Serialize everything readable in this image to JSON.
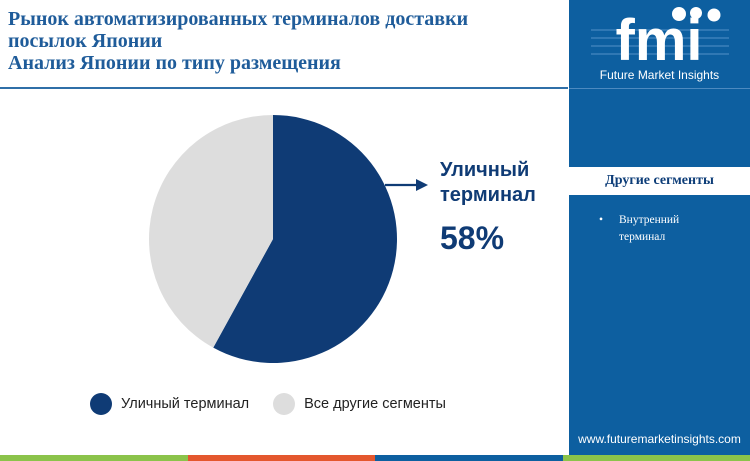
{
  "title": {
    "line1": "Рынок автоматизированных терминалов доставки",
    "line2": "посылок Японии",
    "line3": "Анализ Японии по типу размещения"
  },
  "chart_data": {
    "type": "pie",
    "slices": [
      {
        "label": "Уличный терминал",
        "value": 58,
        "color": "#0f3b75"
      },
      {
        "label": "Все другие сегменты",
        "value": 42,
        "color": "#dddddd"
      }
    ]
  },
  "callout": {
    "label_line1": "Уличный",
    "label_line2": "терминал",
    "value": "58%"
  },
  "legend": {
    "items": [
      {
        "label": "Уличный терминал",
        "color": "#0f3b75"
      },
      {
        "label": "Все другие сегменты",
        "color": "#dddddd"
      }
    ]
  },
  "sidebar": {
    "logo_text": "fmi",
    "logo_subtitle": "Future Market Insights",
    "segments_title": "Другие сегменты",
    "segments": [
      "Внутренний терминал"
    ],
    "website": "www.futuremarketinsights.com"
  },
  "colors": {
    "accent": "#0f3b75",
    "sidebar_bg": "#0d5fa0",
    "title": "#1f5c9a",
    "strip": [
      "#8bc34a",
      "#e4572e",
      "#0d5fa0",
      "#8bc34a"
    ]
  }
}
